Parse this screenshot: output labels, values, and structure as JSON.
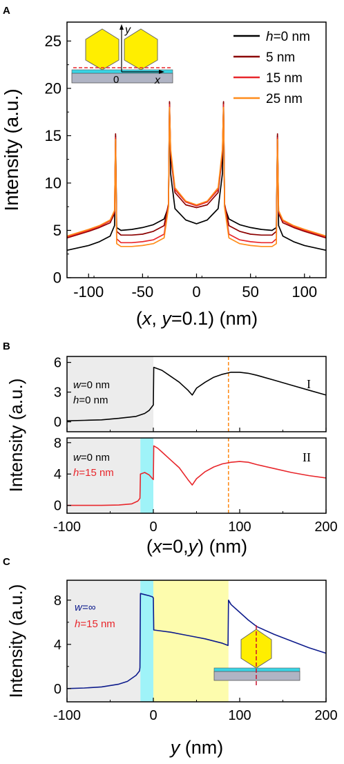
{
  "panel_labels": [
    "A",
    "B",
    "C"
  ],
  "chart_data": [
    {
      "type": "line",
      "panel": "A",
      "xlabel": "(x, y=0.1) (nm)",
      "ylabel": "Intensity (a.u.)",
      "xlim": [
        -120,
        120
      ],
      "ylim": [
        0,
        27
      ],
      "xticks": [
        -100,
        -50,
        0,
        50,
        100
      ],
      "yticks": [
        0,
        5,
        10,
        15,
        20,
        25
      ],
      "legend_position": "top-right",
      "inset_labels": [
        "y",
        "x",
        "0"
      ],
      "series": [
        {
          "name": "h=0 nm",
          "color": "#000000",
          "x": [
            -120,
            -100,
            -90,
            -80,
            -76,
            -75,
            -74,
            -70,
            -60,
            -50,
            -40,
            -30,
            -26,
            -25,
            -24,
            -20,
            -10,
            0,
            10,
            20,
            24,
            25,
            26,
            30,
            40,
            50,
            60,
            70,
            74,
            75,
            76,
            80,
            90,
            100,
            120
          ],
          "y": [
            2.9,
            3.4,
            3.8,
            4.4,
            5.5,
            15.0,
            5.3,
            5.0,
            5.1,
            5.3,
            5.6,
            6.2,
            7.5,
            18.5,
            11.0,
            7.3,
            6.1,
            5.7,
            6.1,
            7.3,
            11.0,
            18.5,
            7.5,
            6.2,
            5.6,
            5.3,
            5.1,
            5.0,
            5.3,
            15.0,
            5.5,
            4.4,
            3.8,
            3.4,
            2.9
          ]
        },
        {
          "name": "5 nm",
          "color": "#8b0000",
          "x": [
            -120,
            -100,
            -90,
            -80,
            -76,
            -75,
            -74,
            -70,
            -60,
            -50,
            -40,
            -30,
            -26,
            -25,
            -24,
            -20,
            -10,
            0,
            10,
            20,
            24,
            25,
            26,
            30,
            40,
            50,
            60,
            70,
            74,
            75,
            76,
            80,
            90,
            100,
            120
          ],
          "y": [
            4.2,
            4.9,
            5.3,
            5.8,
            6.8,
            15.2,
            4.9,
            4.5,
            4.5,
            4.6,
            4.9,
            5.5,
            7.8,
            18.6,
            13.0,
            9.0,
            7.7,
            7.4,
            7.7,
            9.0,
            13.0,
            18.6,
            7.8,
            5.5,
            4.9,
            4.6,
            4.5,
            4.5,
            4.9,
            15.2,
            6.8,
            5.8,
            5.3,
            4.9,
            4.2
          ]
        },
        {
          "name": "15 nm",
          "color": "#e8262b",
          "x": [
            -120,
            -100,
            -90,
            -80,
            -76,
            -75,
            -74,
            -70,
            -60,
            -50,
            -40,
            -30,
            -26,
            -25,
            -24,
            -20,
            -10,
            0,
            10,
            20,
            24,
            25,
            26,
            30,
            40,
            50,
            60,
            70,
            74,
            75,
            76,
            80,
            90,
            100,
            120
          ],
          "y": [
            4.3,
            5.0,
            5.4,
            6.0,
            7.0,
            14.8,
            4.1,
            3.7,
            3.7,
            3.8,
            4.0,
            4.6,
            7.6,
            18.3,
            13.3,
            9.3,
            8.0,
            7.6,
            8.0,
            9.3,
            13.3,
            18.3,
            7.6,
            4.6,
            4.0,
            3.8,
            3.7,
            3.7,
            4.1,
            14.8,
            7.0,
            6.0,
            5.4,
            5.0,
            4.3
          ]
        },
        {
          "name": "25 nm",
          "color": "#ff8c1a",
          "x": [
            -120,
            -100,
            -90,
            -80,
            -76,
            -75,
            -74,
            -70,
            -60,
            -50,
            -40,
            -30,
            -26,
            -25,
            -24,
            -20,
            -10,
            0,
            10,
            20,
            24,
            25,
            26,
            30,
            40,
            50,
            60,
            70,
            74,
            75,
            76,
            80,
            90,
            100,
            120
          ],
          "y": [
            4.4,
            5.1,
            5.5,
            6.1,
            7.1,
            14.6,
            3.6,
            3.3,
            3.3,
            3.4,
            3.6,
            4.2,
            7.4,
            18.0,
            13.6,
            9.5,
            8.1,
            7.7,
            8.1,
            9.5,
            13.6,
            18.0,
            7.4,
            4.2,
            3.6,
            3.4,
            3.3,
            3.3,
            3.6,
            14.6,
            7.1,
            6.1,
            5.5,
            5.1,
            4.4
          ]
        }
      ]
    },
    {
      "type": "line",
      "panel": "B-I",
      "ylabel": "Intensity (a.u.)",
      "xlim": [
        -100,
        200
      ],
      "ylim": [
        -1,
        6.6
      ],
      "yticks": [
        0,
        3,
        6
      ],
      "annotations": [
        "w=0 nm",
        "h=0 nm"
      ],
      "roman": "I",
      "shaded": [
        {
          "from": -100,
          "to": 0,
          "color": "#ececec"
        }
      ],
      "dashed_x": 87,
      "series": [
        {
          "color": "#000000",
          "x": [
            -100,
            -80,
            -60,
            -40,
            -20,
            -10,
            -5,
            -1,
            0,
            0.5,
            10,
            20,
            30,
            40,
            45,
            50,
            60,
            70,
            80,
            90,
            100,
            110,
            120,
            140,
            160,
            180,
            200
          ],
          "y": [
            0.1,
            0.15,
            0.2,
            0.35,
            0.55,
            0.85,
            1.15,
            1.6,
            1.7,
            5.5,
            5.2,
            4.6,
            4.0,
            3.2,
            2.7,
            3.4,
            4.0,
            4.5,
            4.8,
            5.0,
            5.0,
            4.9,
            4.7,
            4.2,
            3.7,
            3.2,
            2.7
          ]
        }
      ]
    },
    {
      "type": "line",
      "panel": "B-II",
      "xlabel": "(x=0,y) (nm)",
      "ylabel": "Intensity (a.u.)",
      "xlim": [
        -100,
        200
      ],
      "ylim": [
        -1,
        8.6
      ],
      "xticks": [
        -100,
        0,
        100,
        200
      ],
      "yticks": [
        0,
        4,
        8
      ],
      "annotations": [
        "w=0 nm",
        "h=15 nm"
      ],
      "roman": "II",
      "shaded": [
        {
          "from": -100,
          "to": -15,
          "color": "#ececec"
        },
        {
          "from": -15,
          "to": 0,
          "color": "#9ff3f8"
        }
      ],
      "dashed_x": 87,
      "series": [
        {
          "color": "#e8262b",
          "x": [
            -100,
            -60,
            -40,
            -25,
            -18,
            -15.5,
            -15,
            -10,
            -5,
            -1,
            0,
            0.5,
            5,
            10,
            20,
            30,
            40,
            45,
            50,
            60,
            70,
            80,
            90,
            100,
            110,
            120,
            140,
            160,
            180,
            200
          ],
          "y": [
            0.0,
            0.0,
            0.05,
            0.2,
            0.55,
            0.9,
            4.0,
            4.2,
            3.9,
            3.4,
            3.3,
            7.6,
            7.3,
            6.8,
            5.8,
            4.8,
            3.3,
            2.6,
            3.4,
            4.3,
            4.9,
            5.3,
            5.5,
            5.6,
            5.5,
            5.2,
            4.7,
            4.2,
            3.8,
            3.5
          ]
        }
      ]
    },
    {
      "type": "line",
      "panel": "C",
      "xlabel": "y (nm)",
      "ylabel": "Intensity (a.u.)",
      "xlim": [
        -100,
        200
      ],
      "ylim": [
        -1.2,
        9.8
      ],
      "xticks": [
        -100,
        0,
        100,
        200
      ],
      "yticks": [
        0,
        4,
        8
      ],
      "annotations": [
        "w=∞",
        "h=15 nm"
      ],
      "shaded": [
        {
          "from": -100,
          "to": -15,
          "color": "#ececec"
        },
        {
          "from": -15,
          "to": 0,
          "color": "#9ff3f8"
        },
        {
          "from": 0,
          "to": 87,
          "color": "#fdfcad"
        }
      ],
      "series": [
        {
          "color": "#0d1b8c",
          "x": [
            -100,
            -80,
            -60,
            -40,
            -30,
            -20,
            -16,
            -15.5,
            -15,
            -10,
            -5,
            -1,
            0,
            0.5,
            20,
            40,
            60,
            80,
            86.5,
            87,
            90,
            100,
            110,
            120,
            140,
            160,
            180,
            200
          ],
          "y": [
            0.0,
            0.05,
            0.15,
            0.4,
            0.65,
            1.2,
            1.6,
            1.9,
            8.6,
            8.5,
            8.4,
            8.3,
            8.2,
            5.3,
            5.1,
            4.8,
            4.5,
            4.1,
            3.9,
            8.0,
            7.6,
            6.9,
            6.2,
            5.6,
            4.9,
            4.3,
            3.7,
            3.2
          ]
        }
      ]
    }
  ]
}
